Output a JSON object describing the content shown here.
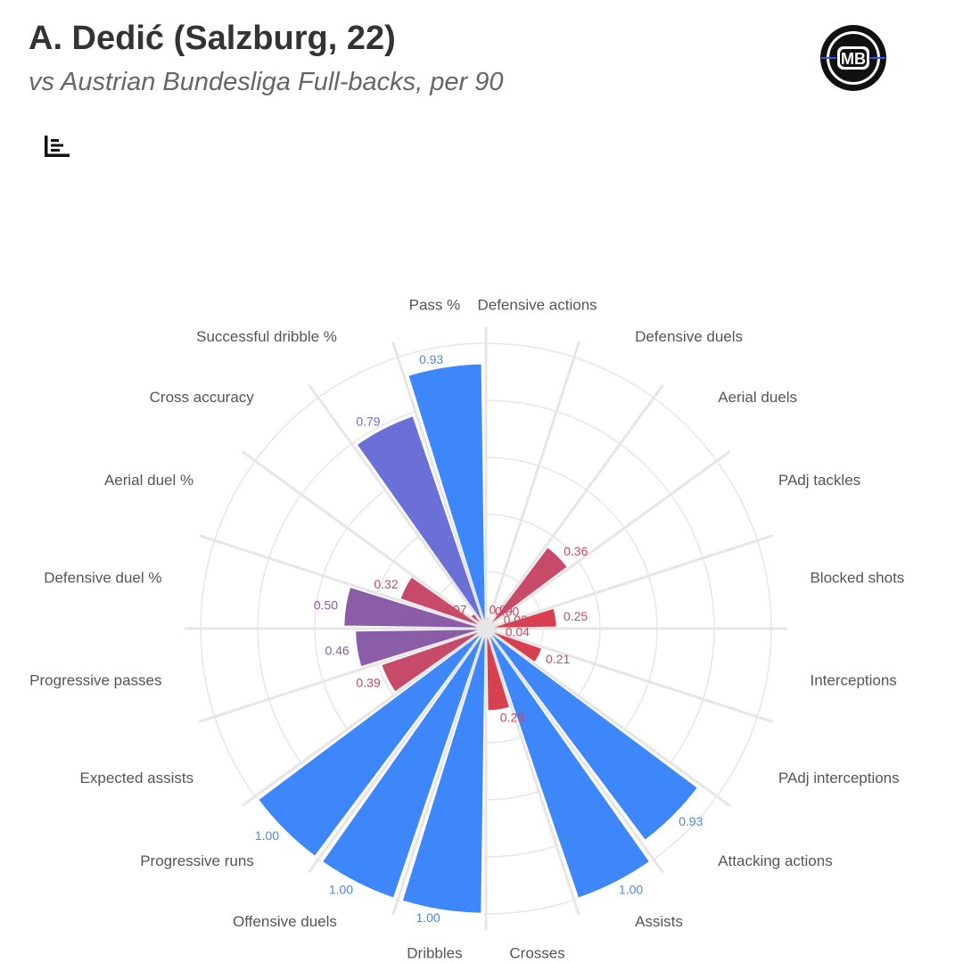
{
  "header": {
    "title": "A. Dedić (Salzburg, 22)",
    "subtitle": "vs Austrian Bundesliga Full-backs, per 90"
  },
  "logo": {
    "text": "MB",
    "icon": "mb-logo"
  },
  "toolbar": {
    "icon": "bar-chart-menu-icon"
  },
  "colors": {
    "high": "#3d87fb",
    "mid": "#6a70d6",
    "purple": "#8b5ca8",
    "low": "#c84a6b",
    "lowest": "#d9404f",
    "grid": "#e6e6e6"
  },
  "chart_data": {
    "type": "polar-bar",
    "ylim": [
      0,
      1
    ],
    "categories": [
      "Defensive actions",
      "Defensive duels",
      "Aerial duels",
      "PAdj tackles",
      "Blocked shots",
      "Interceptions",
      "PAdj interceptions",
      "Attacking actions",
      "Assists",
      "Crosses",
      "Dribbles",
      "Offensive duels",
      "Progressive runs",
      "Expected assists",
      "Progressive passes",
      "Defensive duel %",
      "Aerial duel %",
      "Cross accuracy",
      "Successful dribble %",
      "Pass %"
    ],
    "values": [
      0.04,
      0.0,
      0.36,
      0.0,
      0.25,
      0.04,
      0.21,
      0.93,
      1.0,
      0.29,
      1.0,
      1.0,
      1.0,
      0.39,
      0.46,
      0.5,
      0.32,
      0.07,
      0.79,
      0.93
    ],
    "value_labels": [
      "0.04",
      "0.00",
      "0.36",
      "0.00",
      "0.25",
      "0.04",
      "0.21",
      "0.93",
      "1.00",
      "0.29",
      "1.00",
      "1.00",
      "1.00",
      "0.39",
      "0.46",
      "0.50",
      "0.32",
      "0.07",
      "0.79",
      "0.93"
    ]
  }
}
